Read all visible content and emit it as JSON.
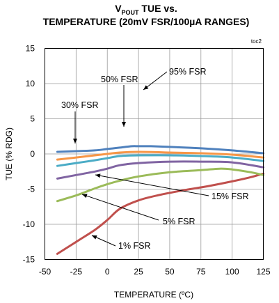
{
  "title": {
    "line1_prefix": "V",
    "line1_sub": "POUT",
    "line1_suffix": " TUE vs.",
    "line2": "TEMPERATURE (20mV FSR/100µA RANGES)"
  },
  "chart_data": {
    "type": "line",
    "tag": "toc2",
    "xlabel": "TEMPERATURE (ºC)",
    "ylabel": "TUE (% RDG)",
    "xlim": [
      -50,
      125
    ],
    "ylim": [
      -15,
      15
    ],
    "xticks": [
      "-50",
      "-25",
      "0",
      "25",
      "50",
      "75",
      "100",
      "125"
    ],
    "yticks": [
      "15",
      "10",
      "5",
      "0",
      "-5",
      "-10",
      "-15"
    ],
    "grid": true,
    "series": [
      {
        "name": "1% FSR",
        "color": "#c0504d",
        "x": [
          -40,
          -25,
          -10,
          0,
          10,
          25,
          40,
          60,
          80,
          100,
          115,
          125
        ],
        "y": [
          -14.2,
          -12.5,
          -10.8,
          -9.4,
          -7.8,
          -6.6,
          -5.9,
          -5.2,
          -4.6,
          -3.9,
          -3.3,
          -2.8
        ]
      },
      {
        "name": "5% FSR",
        "color": "#9bbb59",
        "x": [
          -40,
          -25,
          -10,
          0,
          10,
          25,
          50,
          75,
          90,
          100,
          115,
          125
        ],
        "y": [
          -6.7,
          -5.9,
          -4.9,
          -4.3,
          -3.8,
          -3.2,
          -2.6,
          -2.3,
          -2.1,
          -2.2,
          -2.6,
          -3.0
        ]
      },
      {
        "name": "15% FSR",
        "color": "#8064a2",
        "x": [
          -40,
          -25,
          -10,
          0,
          10,
          25,
          50,
          75,
          100,
          125
        ],
        "y": [
          -3.5,
          -3.0,
          -2.5,
          -2.1,
          -1.6,
          -1.3,
          -1.1,
          -1.1,
          -1.2,
          -1.9
        ]
      },
      {
        "name": "30% FSR",
        "color": "#4bacc6",
        "x": [
          -40,
          -25,
          -10,
          0,
          10,
          25,
          50,
          75,
          100,
          125
        ],
        "y": [
          -1.7,
          -1.3,
          -0.9,
          -0.6,
          -0.3,
          -0.2,
          -0.2,
          -0.3,
          -0.5,
          -1.0
        ]
      },
      {
        "name": "50% FSR",
        "color": "#f79646",
        "x": [
          -40,
          -25,
          -10,
          0,
          10,
          25,
          50,
          75,
          100,
          125
        ],
        "y": [
          -0.8,
          -0.5,
          -0.2,
          0.0,
          0.2,
          0.3,
          0.2,
          0.1,
          -0.1,
          -0.5
        ]
      },
      {
        "name": "95% FSR",
        "color": "#4f81bd",
        "x": [
          -40,
          -25,
          -10,
          0,
          10,
          20,
          25,
          35,
          50,
          75,
          100,
          125
        ],
        "y": [
          0.3,
          0.4,
          0.5,
          0.7,
          0.9,
          1.1,
          1.1,
          1.1,
          1.0,
          0.8,
          0.5,
          0.1
        ]
      }
    ],
    "annotations": [
      {
        "text": "50% FSR",
        "series": "50% FSR"
      },
      {
        "text": "95% FSR",
        "series": "95% FSR"
      },
      {
        "text": "30% FSR",
        "series": "30% FSR"
      },
      {
        "text": "15% FSR",
        "series": "15% FSR"
      },
      {
        "text": "5% FSR",
        "series": "5% FSR"
      },
      {
        "text": "1% FSR",
        "series": "1% FSR"
      }
    ]
  }
}
